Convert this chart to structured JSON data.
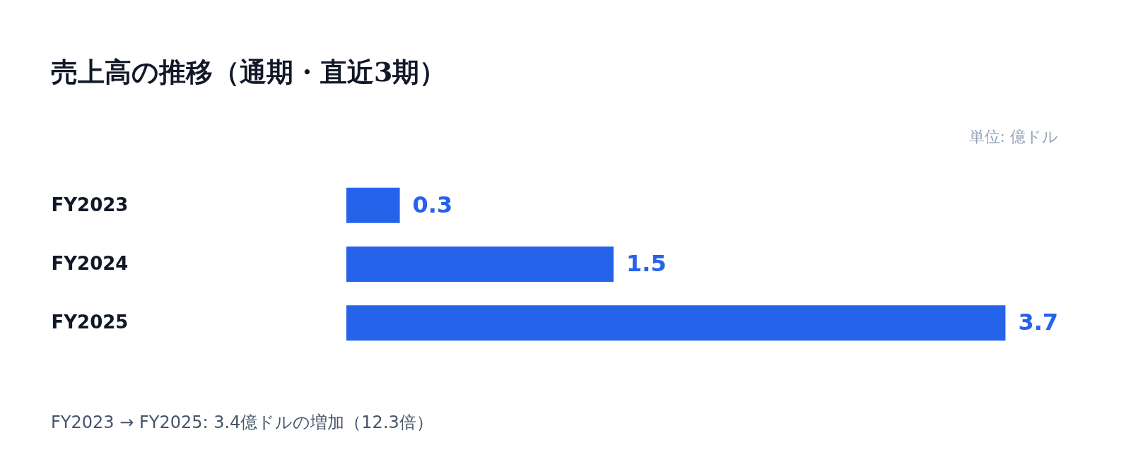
{
  "chart_data": {
    "type": "bar",
    "orientation": "horizontal",
    "title": "売上高の推移（通期・直近3期）",
    "categories": [
      "FY2023",
      "FY2024",
      "FY2025"
    ],
    "values": [
      0.3,
      1.5,
      3.7
    ],
    "color": "#2563eb",
    "data_labels": true,
    "annotations": [
      "単位: 億ドル",
      "FY2023 → FY2025: 3.4億ドルの増加（12.3倍）"
    ]
  }
}
